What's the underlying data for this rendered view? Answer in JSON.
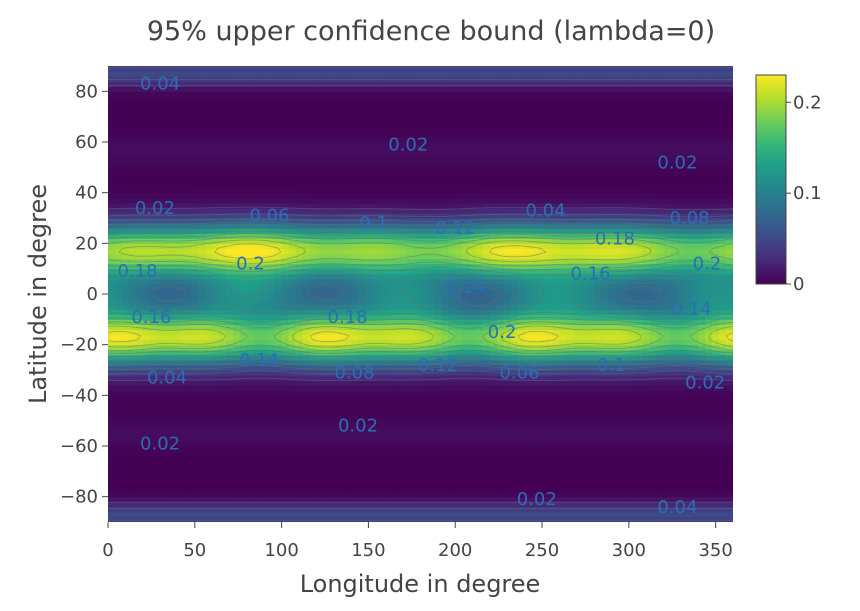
{
  "chart_data": {
    "type": "heatmap",
    "title": "95% upper confidence bound (lambda=0)",
    "xlabel": "Longitude in degree",
    "ylabel": "Latitude in degree",
    "xlim": [
      0,
      360
    ],
    "ylim": [
      -90,
      90
    ],
    "x_ticks": [
      "0",
      "50",
      "100",
      "150",
      "200",
      "250",
      "300",
      "350"
    ],
    "x_tick_values": [
      0,
      50,
      100,
      150,
      200,
      250,
      300,
      350
    ],
    "y_ticks": [
      "80",
      "60",
      "40",
      "20",
      "0",
      "−20",
      "−40",
      "−60",
      "−80"
    ],
    "y_tick_values": [
      80,
      60,
      40,
      20,
      0,
      -20,
      -40,
      -60,
      -80
    ],
    "colorscale": "viridis",
    "colorbar": {
      "range": [
        0,
        0.23
      ],
      "ticks": [
        "0.2",
        "0.1",
        "0"
      ],
      "tick_values": [
        0.2,
        0.1,
        0
      ]
    },
    "contour_levels": [
      0.02,
      0.04,
      0.06,
      0.08,
      0.1,
      0.12,
      0.14,
      0.16,
      0.18,
      0.2,
      0.22
    ],
    "contour_labels": [
      {
        "text": "0.04",
        "lon": 30,
        "lat": 83
      },
      {
        "text": "0.02",
        "lon": 173,
        "lat": 59
      },
      {
        "text": "0.02",
        "lon": 328,
        "lat": 52
      },
      {
        "text": "0.02",
        "lon": 27,
        "lat": 34
      },
      {
        "text": "0.06",
        "lon": 93,
        "lat": 31
      },
      {
        "text": "0.1",
        "lon": 153,
        "lat": 28
      },
      {
        "text": "0.12",
        "lon": 200,
        "lat": 26
      },
      {
        "text": "0.04",
        "lon": 252,
        "lat": 33
      },
      {
        "text": "0.08",
        "lon": 335,
        "lat": 30
      },
      {
        "text": "0.18",
        "lon": 292,
        "lat": 22
      },
      {
        "text": "0.18",
        "lon": 17,
        "lat": 9
      },
      {
        "text": "0.2",
        "lon": 82,
        "lat": 12
      },
      {
        "text": "0.16",
        "lon": 278,
        "lat": 8
      },
      {
        "text": "0.2",
        "lon": 345,
        "lat": 12
      },
      {
        "text": "0.14",
        "lon": 206,
        "lat": 3
      },
      {
        "text": "0.16",
        "lon": 25,
        "lat": -9
      },
      {
        "text": "0.18",
        "lon": 138,
        "lat": -9
      },
      {
        "text": "0.14",
        "lon": 336,
        "lat": -6
      },
      {
        "text": "0.2",
        "lon": 227,
        "lat": -15
      },
      {
        "text": "0.14",
        "lon": 87,
        "lat": -26
      },
      {
        "text": "0.08",
        "lon": 142,
        "lat": -31
      },
      {
        "text": "0.12",
        "lon": 190,
        "lat": -28
      },
      {
        "text": "0.06",
        "lon": 237,
        "lat": -31
      },
      {
        "text": "0.1",
        "lon": 290,
        "lat": -28
      },
      {
        "text": "0.04",
        "lon": 34,
        "lat": -33
      },
      {
        "text": "0.02",
        "lon": 344,
        "lat": -35
      },
      {
        "text": "0.02",
        "lon": 144,
        "lat": -52
      },
      {
        "text": "0.02",
        "lon": 30,
        "lat": -59
      },
      {
        "text": "0.02",
        "lon": 247,
        "lat": -81
      },
      {
        "text": "0.04",
        "lon": 328,
        "lat": -84
      }
    ]
  }
}
